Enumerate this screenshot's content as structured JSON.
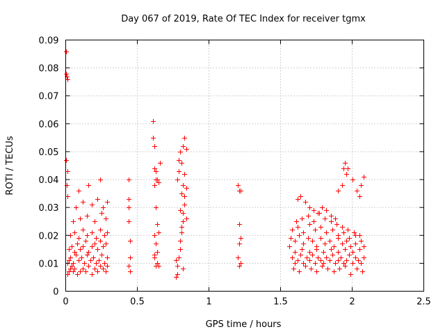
{
  "chart_data": {
    "type": "scatter",
    "title": "Day 067 of 2019, Rate Of TEC Index for receiver tgmx",
    "xlabel": "GPS time / hours",
    "ylabel": "ROTI / TECUs",
    "xlim": [
      0,
      2.5
    ],
    "ylim": [
      0,
      0.09
    ],
    "x_ticks": [
      0,
      0.5,
      1,
      1.5,
      2,
      2.5
    ],
    "x_tick_labels": [
      "0",
      "0.5",
      "1",
      "1.5",
      "2",
      "2.5"
    ],
    "y_ticks": [
      0,
      0.01,
      0.02,
      0.03,
      0.04,
      0.05,
      0.06,
      0.07,
      0.08,
      0.09
    ],
    "y_tick_labels": [
      "0",
      "0.01",
      "0.02",
      "0.03",
      "0.04",
      "0.05",
      "0.06",
      "0.07",
      "0.08",
      "0.09"
    ],
    "grid": true,
    "marker": "+",
    "series": [
      {
        "name": "ROTI",
        "color": "#ff0000",
        "x": [
          0.0,
          0.004,
          0.008,
          0.012,
          0.004,
          0.01,
          0.008,
          0.012,
          0.01,
          0.02,
          0.03,
          0.04,
          0.05,
          0.06,
          0.08,
          0.1,
          0.12,
          0.14,
          0.16,
          0.18,
          0.2,
          0.22,
          0.24,
          0.26,
          0.28,
          0.29,
          0.01,
          0.02,
          0.03,
          0.05,
          0.07,
          0.09,
          0.11,
          0.13,
          0.15,
          0.17,
          0.19,
          0.21,
          0.23,
          0.25,
          0.27,
          0.29,
          0.02,
          0.04,
          0.06,
          0.08,
          0.1,
          0.12,
          0.14,
          0.16,
          0.18,
          0.2,
          0.22,
          0.24,
          0.26,
          0.28,
          0.03,
          0.06,
          0.09,
          0.12,
          0.15,
          0.18,
          0.21,
          0.24,
          0.27,
          0.29,
          0.05,
          0.1,
          0.15,
          0.2,
          0.25,
          0.28,
          0.07,
          0.12,
          0.18,
          0.22,
          0.26,
          0.29,
          0.09,
          0.16,
          0.24,
          0.44,
          0.44,
          0.44,
          0.44,
          0.45,
          0.45,
          0.44,
          0.45,
          0.61,
          0.62,
          0.62,
          0.63,
          0.63,
          0.64,
          0.65,
          0.61,
          0.62,
          0.63,
          0.64,
          0.65,
          0.62,
          0.63,
          0.64,
          0.62,
          0.64,
          0.63,
          0.65,
          0.62,
          0.66,
          0.77,
          0.78,
          0.78,
          0.79,
          0.8,
          0.8,
          0.81,
          0.82,
          0.82,
          0.83,
          0.83,
          0.84,
          0.78,
          0.79,
          0.81,
          0.8,
          0.82,
          0.83,
          0.84,
          0.79,
          0.81,
          0.82,
          0.8,
          0.83,
          0.81,
          0.84,
          0.77,
          0.82,
          1.2,
          1.21,
          1.22,
          1.21,
          1.22,
          1.21,
          1.2,
          1.22,
          1.21,
          1.56,
          1.58,
          1.6,
          1.62,
          1.64,
          1.66,
          1.68,
          1.7,
          1.72,
          1.74,
          1.76,
          1.78,
          1.8,
          1.82,
          1.84,
          1.86,
          1.88,
          1.9,
          1.92,
          1.94,
          1.96,
          1.98,
          2.0,
          2.02,
          2.04,
          2.06,
          2.08,
          1.57,
          1.6,
          1.63,
          1.66,
          1.69,
          1.72,
          1.75,
          1.78,
          1.81,
          1.84,
          1.87,
          1.9,
          1.93,
          1.96,
          1.99,
          2.02,
          2.05,
          2.08,
          1.58,
          1.62,
          1.66,
          1.7,
          1.74,
          1.78,
          1.82,
          1.86,
          1.9,
          1.94,
          1.98,
          2.02,
          2.06,
          1.61,
          1.65,
          1.69,
          1.73,
          1.77,
          1.81,
          1.85,
          1.89,
          1.93,
          1.97,
          2.01,
          2.05,
          1.9,
          1.93,
          1.95,
          1.97,
          2.0,
          2.03,
          2.06,
          2.08,
          1.94,
          1.96,
          2.05,
          1.62,
          1.64,
          1.67,
          1.7,
          1.73,
          1.76,
          1.79,
          1.82,
          1.85,
          1.88,
          1.59,
          1.63,
          1.67,
          1.71,
          1.75,
          1.79,
          1.83,
          1.87,
          1.91,
          1.95,
          1.99,
          2.03,
          2.07,
          1.6,
          1.65,
          1.7,
          1.75,
          1.8,
          1.85,
          1.9,
          1.95,
          2.0,
          2.05
        ],
        "y": [
          0.086,
          0.078,
          0.077,
          0.076,
          0.047,
          0.043,
          0.038,
          0.034,
          0.006,
          0.007,
          0.008,
          0.009,
          0.007,
          0.008,
          0.006,
          0.007,
          0.008,
          0.007,
          0.009,
          0.006,
          0.008,
          0.007,
          0.009,
          0.008,
          0.007,
          0.009,
          0.01,
          0.011,
          0.012,
          0.01,
          0.013,
          0.011,
          0.012,
          0.01,
          0.013,
          0.011,
          0.012,
          0.01,
          0.011,
          0.013,
          0.01,
          0.012,
          0.015,
          0.016,
          0.014,
          0.017,
          0.015,
          0.016,
          0.018,
          0.014,
          0.016,
          0.017,
          0.015,
          0.018,
          0.016,
          0.017,
          0.02,
          0.021,
          0.019,
          0.022,
          0.02,
          0.021,
          0.019,
          0.022,
          0.02,
          0.021,
          0.025,
          0.026,
          0.027,
          0.025,
          0.028,
          0.026,
          0.03,
          0.032,
          0.031,
          0.033,
          0.03,
          0.032,
          0.036,
          0.038,
          0.04,
          0.04,
          0.033,
          0.03,
          0.025,
          0.018,
          0.012,
          0.009,
          0.007,
          0.055,
          0.052,
          0.044,
          0.043,
          0.04,
          0.04,
          0.039,
          0.061,
          0.038,
          0.03,
          0.024,
          0.021,
          0.02,
          0.017,
          0.014,
          0.012,
          0.01,
          0.009,
          0.009,
          0.013,
          0.046,
          0.005,
          0.006,
          0.009,
          0.012,
          0.015,
          0.018,
          0.021,
          0.025,
          0.028,
          0.031,
          0.034,
          0.037,
          0.04,
          0.043,
          0.046,
          0.05,
          0.052,
          0.055,
          0.051,
          0.047,
          0.035,
          0.038,
          0.029,
          0.042,
          0.023,
          0.026,
          0.011,
          0.008,
          0.038,
          0.036,
          0.036,
          0.024,
          0.019,
          0.017,
          0.012,
          0.01,
          0.009,
          0.016,
          0.012,
          0.01,
          0.011,
          0.013,
          0.01,
          0.012,
          0.011,
          0.013,
          0.01,
          0.012,
          0.011,
          0.01,
          0.012,
          0.011,
          0.013,
          0.01,
          0.011,
          0.012,
          0.01,
          0.011,
          0.013,
          0.01,
          0.012,
          0.011,
          0.01,
          0.012,
          0.019,
          0.018,
          0.02,
          0.017,
          0.019,
          0.018,
          0.016,
          0.019,
          0.017,
          0.018,
          0.016,
          0.019,
          0.017,
          0.018,
          0.016,
          0.017,
          0.015,
          0.016,
          0.022,
          0.023,
          0.021,
          0.024,
          0.022,
          0.023,
          0.021,
          0.022,
          0.02,
          0.021,
          0.019,
          0.02,
          0.018,
          0.025,
          0.026,
          0.027,
          0.025,
          0.028,
          0.026,
          0.025,
          0.024,
          0.023,
          0.022,
          0.021,
          0.02,
          0.036,
          0.038,
          0.046,
          0.044,
          0.04,
          0.036,
          0.038,
          0.041,
          0.044,
          0.042,
          0.034,
          0.033,
          0.034,
          0.032,
          0.03,
          0.029,
          0.028,
          0.03,
          0.029,
          0.027,
          0.026,
          0.008,
          0.007,
          0.009,
          0.008,
          0.007,
          0.009,
          0.008,
          0.007,
          0.008,
          0.009,
          0.006,
          0.008,
          0.007,
          0.014,
          0.015,
          0.014,
          0.015,
          0.014,
          0.015,
          0.014,
          0.015,
          0.014,
          0.015
        ]
      }
    ]
  }
}
